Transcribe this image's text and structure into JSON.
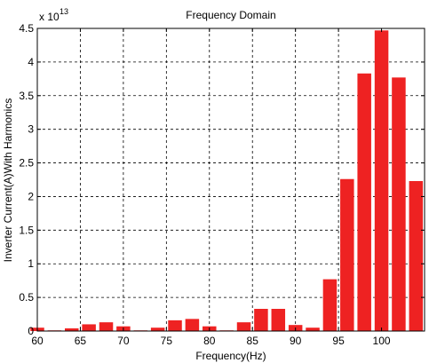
{
  "chart_data": {
    "type": "bar",
    "title": "Frequency Domain",
    "xlabel": "Frequency(Hz)",
    "ylabel": "Inverter Current(A)With Harmonics",
    "exponent_label": "x 10",
    "exponent_power": "13",
    "xlim": [
      60,
      105
    ],
    "ylim": [
      0,
      4.5
    ],
    "grid": true,
    "bar_color": "#ee2222",
    "x_ticks": [
      60,
      65,
      70,
      75,
      80,
      85,
      90,
      95,
      100
    ],
    "y_ticks": [
      0,
      0.5,
      1,
      1.5,
      2,
      2.5,
      3,
      3.5,
      4,
      4.5
    ],
    "x_tick_labels": [
      "60",
      "65",
      "70",
      "75",
      "80",
      "85",
      "90",
      "95",
      "100"
    ],
    "y_tick_labels": [
      "0",
      "0.5",
      "1",
      "1.5",
      "2",
      "2.5",
      "3",
      "3.5",
      "4",
      "4.5"
    ],
    "x": [
      60,
      62,
      64,
      66,
      68,
      70,
      72,
      74,
      76,
      78,
      80,
      82,
      84,
      86,
      88,
      90,
      92,
      94,
      96,
      98,
      100,
      102,
      104
    ],
    "values": [
      0.05,
      0.01,
      0.04,
      0.1,
      0.13,
      0.07,
      0.01,
      0.05,
      0.16,
      0.18,
      0.07,
      0.01,
      0.13,
      0.33,
      0.33,
      0.09,
      0.05,
      0.77,
      2.26,
      3.83,
      4.47,
      3.77,
      2.23
    ]
  }
}
